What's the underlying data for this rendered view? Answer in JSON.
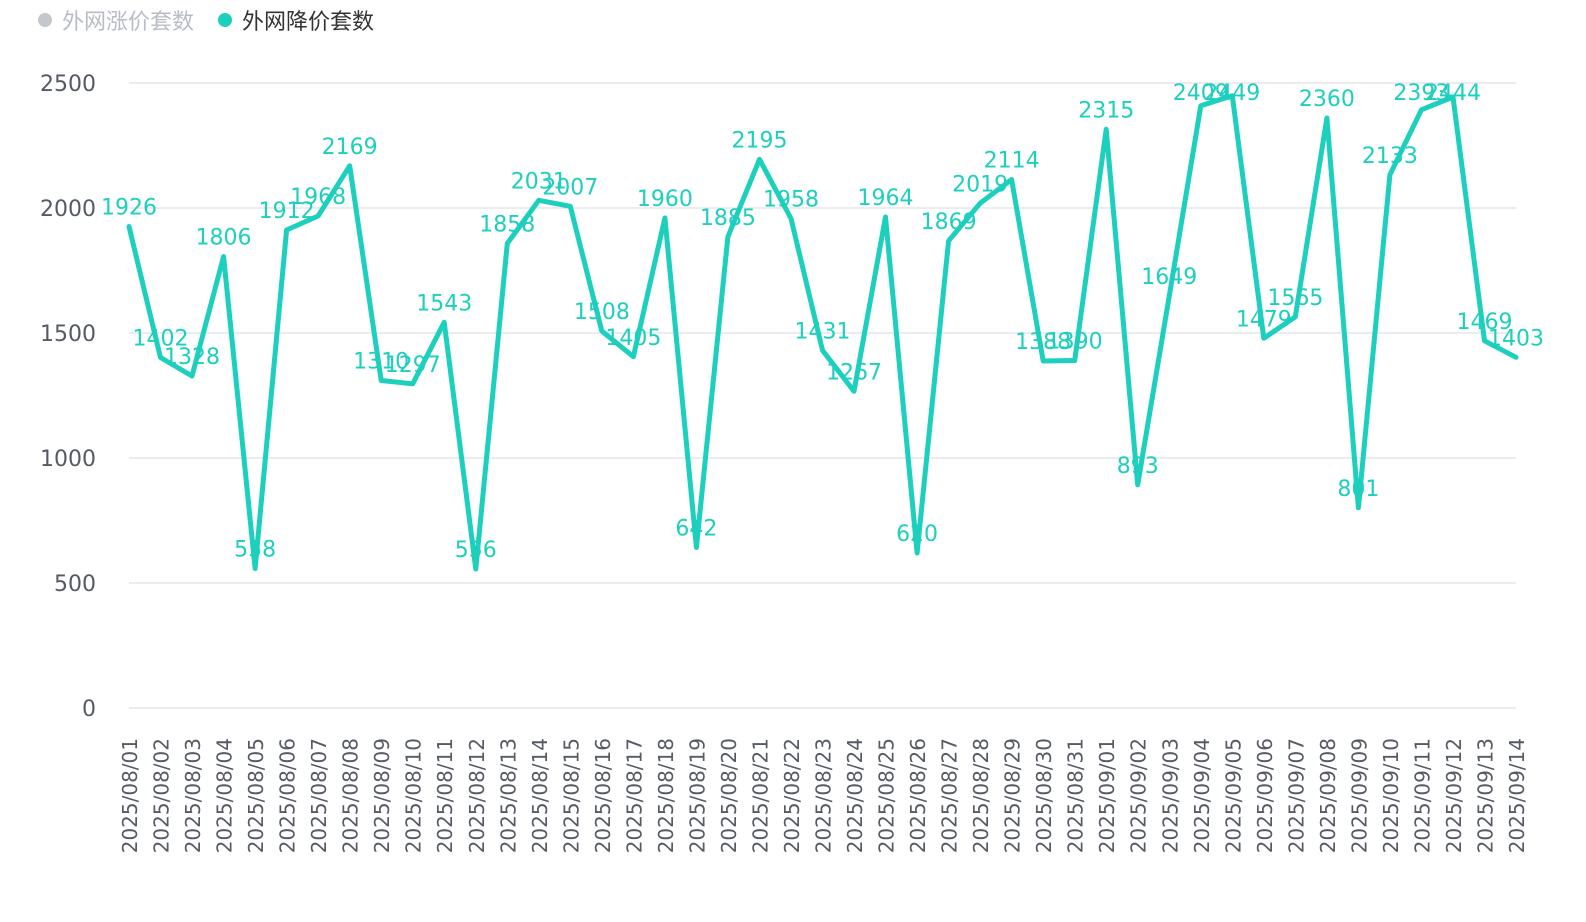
{
  "legend": {
    "items": [
      {
        "label": "外网涨价套数",
        "color": "#c4c7cc",
        "active": false
      },
      {
        "label": "外网降价套数",
        "color": "#1dcfbd",
        "active": true
      }
    ]
  },
  "chart_data": {
    "type": "line",
    "title": "",
    "xlabel": "",
    "ylabel": "",
    "ylim": [
      0,
      2500
    ],
    "yticks": [
      0,
      500,
      1000,
      1500,
      2000,
      2500
    ],
    "grid": true,
    "legend_position": "top-left",
    "categories": [
      "2025/08/01",
      "2025/08/02",
      "2025/08/03",
      "2025/08/04",
      "2025/08/05",
      "2025/08/06",
      "2025/08/07",
      "2025/08/08",
      "2025/08/09",
      "2025/08/10",
      "2025/08/11",
      "2025/08/12",
      "2025/08/13",
      "2025/08/14",
      "2025/08/15",
      "2025/08/16",
      "2025/08/17",
      "2025/08/18",
      "2025/08/19",
      "2025/08/20",
      "2025/08/21",
      "2025/08/22",
      "2025/08/23",
      "2025/08/24",
      "2025/08/25",
      "2025/08/26",
      "2025/08/27",
      "2025/08/28",
      "2025/08/29",
      "2025/08/30",
      "2025/08/31",
      "2025/09/01",
      "2025/09/02",
      "2025/09/03",
      "2025/09/04",
      "2025/09/05",
      "2025/09/06",
      "2025/09/07",
      "2025/09/08",
      "2025/09/09",
      "2025/09/10",
      "2025/09/11",
      "2025/09/12",
      "2025/09/13",
      "2025/09/14"
    ],
    "series": [
      {
        "name": "外网降价套数",
        "color": "#1dcfbd",
        "values": [
          1926,
          1402,
          1328,
          1806,
          558,
          1912,
          1968,
          2169,
          1310,
          1297,
          1543,
          556,
          1858,
          2031,
          2007,
          1508,
          1405,
          1960,
          642,
          1885,
          2195,
          1958,
          1431,
          1267,
          1964,
          620,
          1869,
          2019,
          2114,
          1388,
          1390,
          2315,
          893,
          1649,
          2409,
          2449,
          1479,
          1565,
          2360,
          801,
          2133,
          2393,
          2444,
          1469,
          1403
        ]
      }
    ]
  }
}
